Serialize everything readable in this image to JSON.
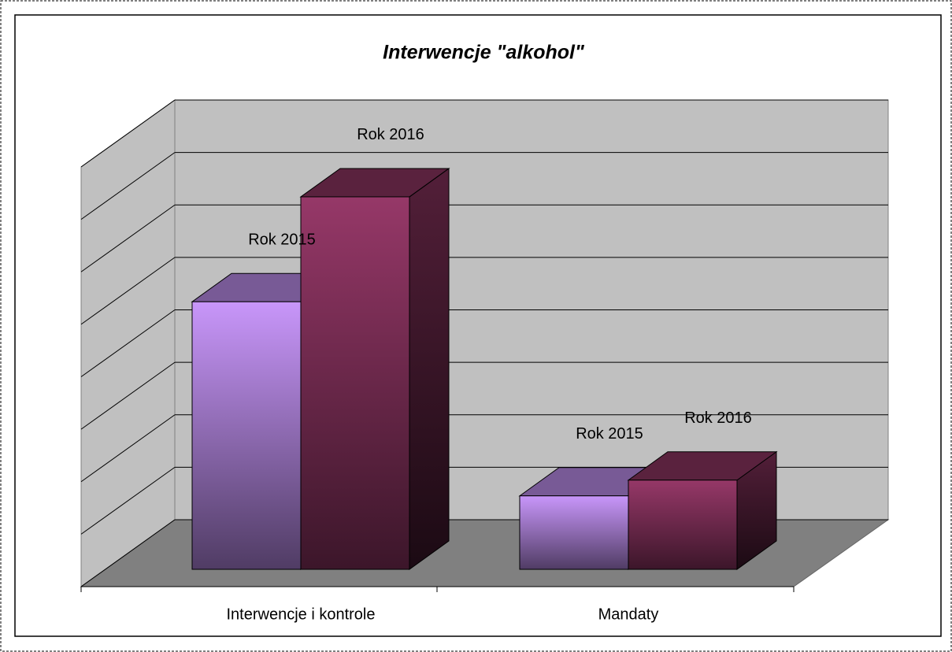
{
  "chart_data": {
    "type": "bar3d",
    "title": "Interwencje \"alkohol\"",
    "categories": [
      "Interwencje  i kontrole",
      "Mandaty"
    ],
    "series": [
      {
        "name": "Rok 2015",
        "color": "#c896fa",
        "values": [
          5.1,
          1.4
        ]
      },
      {
        "name": "Rok 2016",
        "color": "#963868",
        "values": [
          7.1,
          1.7
        ]
      }
    ],
    "ylim": [
      0,
      8
    ],
    "yticks": [
      0,
      1,
      2,
      3,
      4,
      5,
      6,
      7,
      8
    ],
    "grid": true
  }
}
